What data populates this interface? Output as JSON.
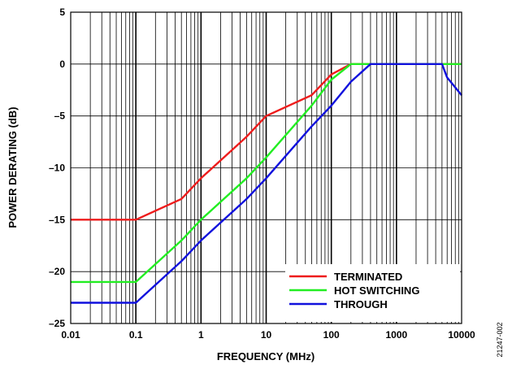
{
  "chart_data": {
    "type": "line",
    "xlabel": "FREQUENCY (MHz)",
    "ylabel": "POWER DERATING (dB)",
    "x_scale": "log",
    "xlim": [
      0.01,
      10000
    ],
    "ylim": [
      -25,
      5
    ],
    "grid": true,
    "legend_position": "bottom-right",
    "x_tick_labels": [
      "0.01",
      "0.1",
      "1",
      "10",
      "100",
      "1000",
      "10000"
    ],
    "y_tick_labels": [
      "5",
      "0",
      "–5",
      "–10",
      "–15",
      "–20",
      "–25"
    ],
    "figure_id": "21247-002",
    "series": [
      {
        "name": "TERMINATED",
        "color": "#ee1c1c",
        "x": [
          0.01,
          0.1,
          0.5,
          1,
          5,
          10,
          50,
          100,
          200,
          10000
        ],
        "y": [
          -15,
          -15,
          -13,
          -11,
          -7,
          -5,
          -3,
          -1,
          0,
          0
        ]
      },
      {
        "name": "HOT SWITCHING",
        "color": "#22ee22",
        "x": [
          0.01,
          0.1,
          0.5,
          1,
          5,
          10,
          50,
          100,
          200,
          10000
        ],
        "y": [
          -21,
          -21,
          -17,
          -15,
          -11,
          -9,
          -4,
          -1.5,
          0,
          0
        ]
      },
      {
        "name": "THROUGH",
        "color": "#1111dd",
        "x": [
          0.01,
          0.1,
          0.5,
          1,
          5,
          10,
          50,
          100,
          200,
          400,
          5000,
          6000,
          10000
        ],
        "y": [
          -23,
          -23,
          -19,
          -17,
          -13,
          -11,
          -6,
          -4,
          -1.7,
          0,
          0,
          -1.3,
          -3
        ]
      }
    ]
  }
}
